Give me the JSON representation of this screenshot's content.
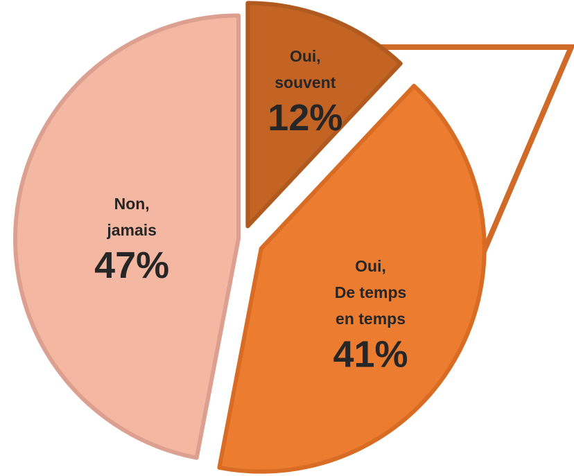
{
  "chart_data": {
    "type": "pie",
    "categories": [
      "Oui,\nsouvent",
      "Oui,\nDe temps\nen temps",
      "Non,\njamais"
    ],
    "values": [
      12,
      41,
      47
    ],
    "value_labels": [
      "12%",
      "41%",
      "47%"
    ],
    "colors": [
      "#c46424",
      "#ec7c30",
      "#f4b8a2"
    ]
  }
}
